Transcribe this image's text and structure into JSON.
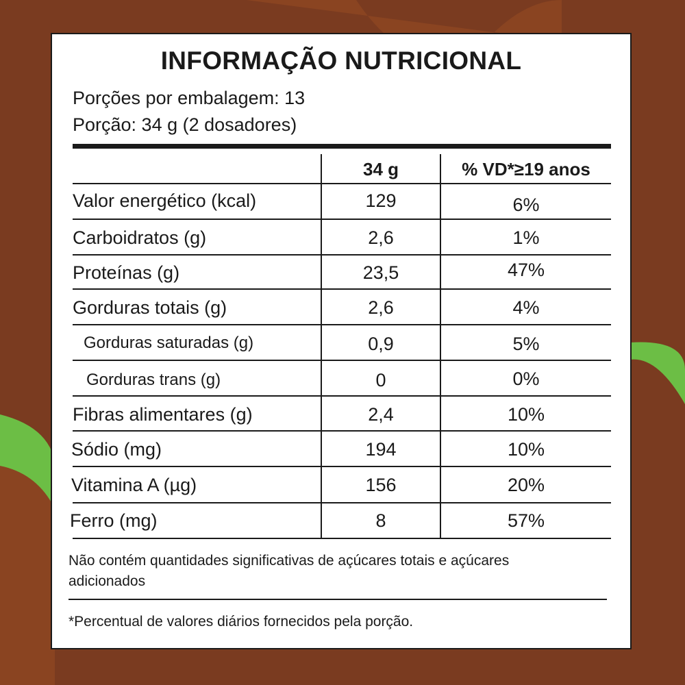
{
  "colors": {
    "background": "#7a3b20",
    "swoosh": "#8c4520",
    "accent_green": "#6cbe45",
    "panel": "#ffffff",
    "ink": "#1a1a1a"
  },
  "title": "INFORMAÇÃO NUTRICIONAL",
  "servings_per_package": "Porções por embalagem: 13",
  "serving_size": "Porção: 34 g (2 dosadores)",
  "table": {
    "headers": {
      "label": "",
      "amount": "34 g",
      "daily_value": "% VD*≥19 anos"
    },
    "rows": [
      {
        "label": "Valor energético (kcal)",
        "amount": "129",
        "daily_value": "6%",
        "indent": false
      },
      {
        "label": "Carboidratos (g)",
        "amount": "2,6",
        "daily_value": "1%",
        "indent": false
      },
      {
        "label": "Proteínas (g)",
        "amount": "23,5",
        "daily_value": "47%",
        "indent": false
      },
      {
        "label": "Gorduras totais (g)",
        "amount": "2,6",
        "daily_value": "4%",
        "indent": false
      },
      {
        "label": "Gorduras saturadas (g)",
        "amount": "0,9",
        "daily_value": "5%",
        "indent": true
      },
      {
        "label": "Gorduras trans (g)",
        "amount": "0",
        "daily_value": "0%",
        "indent": true
      },
      {
        "label": "Fibras alimentares (g)",
        "amount": "2,4",
        "daily_value": "10%",
        "indent": false
      },
      {
        "label": "Sódio (mg)",
        "amount": "194",
        "daily_value": "10%",
        "indent": false
      },
      {
        "label": "Vitamina A (µg)",
        "amount": "156",
        "daily_value": "20%",
        "indent": false
      },
      {
        "label": "Ferro (mg)",
        "amount": "8",
        "daily_value": "57%",
        "indent": false
      }
    ]
  },
  "sugar_note": "Não contém quantidades significativas de açúcares totais e açúcares adicionados",
  "dv_footnote": "*Percentual de valores diários fornecidos pela porção."
}
